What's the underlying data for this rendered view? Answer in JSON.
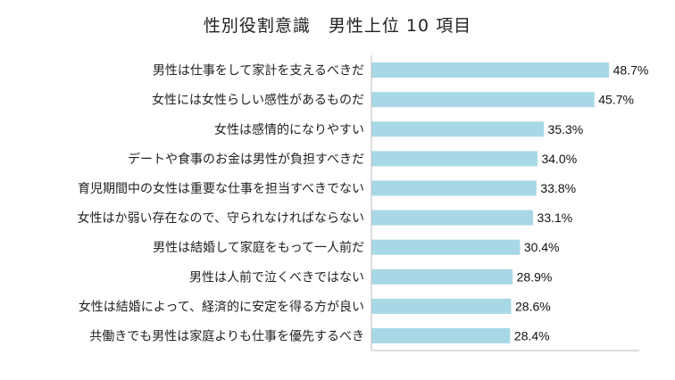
{
  "chart_data": {
    "type": "bar",
    "orientation": "horizontal",
    "title": "性別役割意識　男性上位 10 項目",
    "categories": [
      "男性は仕事をして家計を支えるべきだ",
      "女性には女性らしい感性があるものだ",
      "女性は感情的になりやすい",
      "デートや食事のお金は男性が負担すべきだ",
      "育児期間中の女性は重要な仕事を担当すべきでない",
      "女性はか弱い存在なので、守られなければならない",
      "男性は結婚して家庭をもって一人前だ",
      "男性は人前で泣くべきではない",
      "女性は結婚によって、経済的に安定を得る方が良い",
      "共働きでも男性は家庭よりも仕事を優先するべき"
    ],
    "values": [
      48.7,
      45.7,
      35.3,
      34.0,
      33.8,
      33.1,
      30.4,
      28.9,
      28.6,
      28.4
    ],
    "value_labels": [
      "48.7%",
      "45.7%",
      "35.3%",
      "34.0%",
      "33.8%",
      "33.1%",
      "30.4%",
      "28.9%",
      "28.6%",
      "28.4%"
    ],
    "xlim": [
      0,
      55
    ],
    "grid": false,
    "bar_color": "#a8d8e6"
  }
}
